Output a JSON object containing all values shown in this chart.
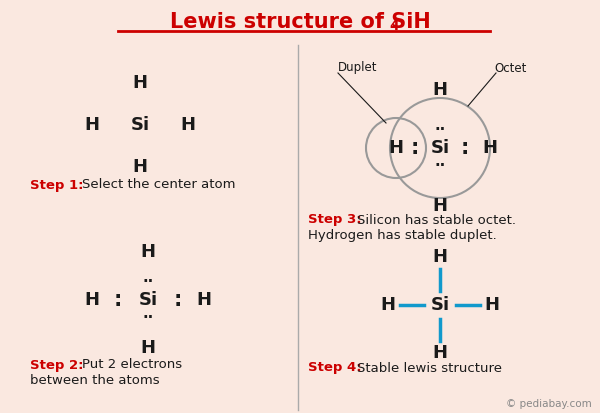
{
  "bg_color": "#fae8e0",
  "title_color": "#cc0000",
  "divider_color": "#aaaaaa",
  "step_label_color": "#cc0000",
  "atom_color": "#1a1a1a",
  "bond_color": "#1199cc",
  "dot_color": "#1a1a1a",
  "circle_color": "#999999",
  "watermark": "© pediabay.com",
  "duplet_label": "Duplet",
  "octet_label": "Octet"
}
